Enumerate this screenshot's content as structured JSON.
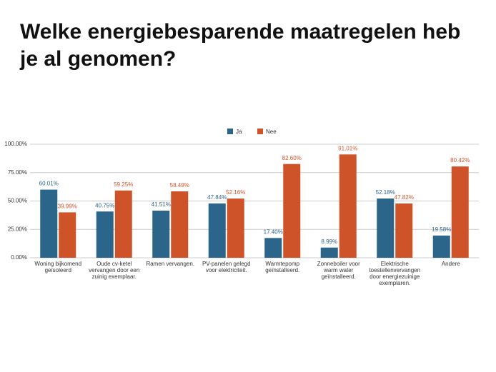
{
  "chart_data": {
    "type": "bar",
    "title": "Welke energiebesparende maatregelen heb je al genomen?",
    "categories": [
      "Woning bijkomend\ngeïsoleerd",
      "Oude cv-ketel\nvervangen door een\nzuinig exemplaar.",
      "Ramen vervangen.",
      "PV-panelen gelegd\nvoor elektriciteit.",
      "Warmtepomp\ngeïnstalleerd.",
      "Zonneboiler voor\nwarm water\ngeïnstalleerd.",
      "Elektrische\ntoestellenvervangen\ndoor energiezuinige\nexemplaren.",
      "Andere"
    ],
    "series": [
      {
        "name": "Ja",
        "color": "#2b6589",
        "values": [
          60.01,
          40.75,
          41.51,
          47.84,
          17.4,
          8.99,
          52.18,
          19.58
        ],
        "value_labels": [
          "60.01%",
          "40.75%",
          "41.51%",
          "47.84%",
          "17.40%",
          "8.99%",
          "52.18%",
          "19.58%"
        ]
      },
      {
        "name": "Nee",
        "color": "#cf5329",
        "values": [
          39.99,
          59.25,
          58.49,
          52.16,
          82.6,
          91.01,
          47.82,
          80.42
        ],
        "value_labels": [
          "39.99%",
          "59.25%",
          "58.49%",
          "52.16%",
          "82.60%",
          "91.01%",
          "47.82%",
          "80.42%"
        ]
      }
    ],
    "ylim": [
      0,
      100
    ],
    "yticks": [
      {
        "value": 0,
        "label": "0.00%"
      },
      {
        "value": 25,
        "label": "25.00%"
      },
      {
        "value": 50,
        "label": "50.00%"
      },
      {
        "value": 75,
        "label": "75.00%"
      },
      {
        "value": 100,
        "label": "100.00%"
      }
    ],
    "grid": true,
    "legend": "top"
  }
}
